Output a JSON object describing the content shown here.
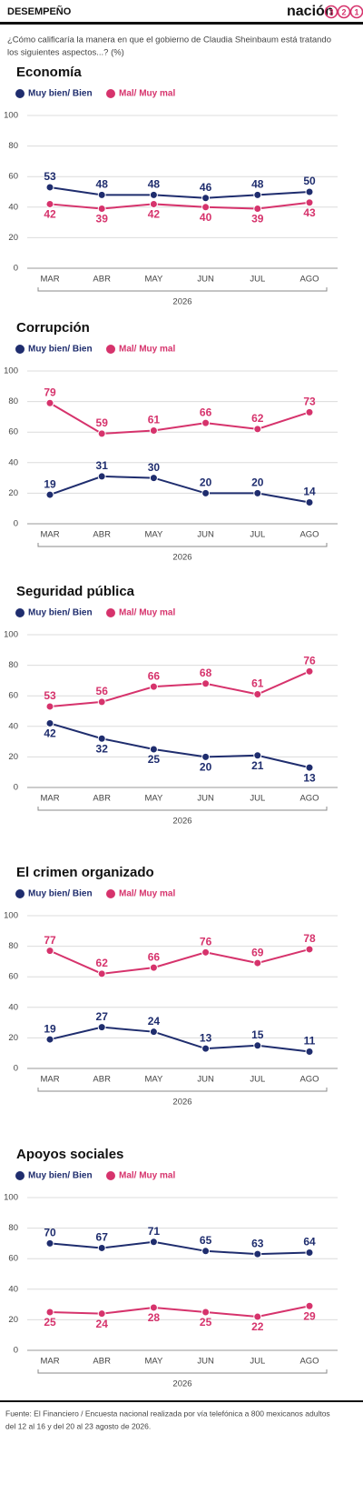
{
  "header": {
    "section": "DESEMPEÑO",
    "logo_word": "nación",
    "logo_digits": [
      "3",
      "2",
      "1"
    ]
  },
  "question": [
    "¿Cómo calificaría la manera en que el gobierno de Claudia Sheinbaum está tratando",
    "los siguientes aspectos...? (%)"
  ],
  "chart_data": [
    {
      "type": "line",
      "title": "Economía",
      "categories": [
        "MAR",
        "ABR",
        "MAY",
        "JUN",
        "JUL",
        "AGO"
      ],
      "x_label": "2026",
      "ylim": [
        0,
        100
      ],
      "yticks": [
        0,
        20,
        40,
        60,
        80,
        100
      ],
      "grid": true,
      "series": [
        {
          "name": "Muy bien/ Bien",
          "color": "#1f2d6e",
          "values": [
            53,
            48,
            48,
            46,
            48,
            50
          ]
        },
        {
          "name": "Mal/ Muy mal",
          "color": "#d6336c",
          "values": [
            42,
            39,
            42,
            40,
            39,
            43
          ]
        }
      ]
    },
    {
      "type": "line",
      "title": "Corrupción",
      "categories": [
        "MAR",
        "ABR",
        "MAY",
        "JUN",
        "JUL",
        "AGO"
      ],
      "x_label": "2026",
      "ylim": [
        0,
        100
      ],
      "yticks": [
        0,
        20,
        40,
        60,
        80,
        100
      ],
      "grid": true,
      "series": [
        {
          "name": "Muy bien/ Bien",
          "color": "#1f2d6e",
          "values": [
            19,
            31,
            30,
            20,
            20,
            14
          ]
        },
        {
          "name": "Mal/ Muy mal",
          "color": "#d6336c",
          "values": [
            79,
            59,
            61,
            66,
            62,
            73
          ]
        }
      ]
    },
    {
      "type": "line",
      "title": "Seguridad pública",
      "categories": [
        "MAR",
        "ABR",
        "MAY",
        "JUN",
        "JUL",
        "AGO"
      ],
      "x_label": "2026",
      "ylim": [
        0,
        100
      ],
      "yticks": [
        0,
        20,
        40,
        60,
        80,
        100
      ],
      "grid": true,
      "series": [
        {
          "name": "Muy bien/ Bien",
          "color": "#1f2d6e",
          "values": [
            42,
            32,
            25,
            20,
            21,
            13
          ]
        },
        {
          "name": "Mal/ Muy mal",
          "color": "#d6336c",
          "values": [
            53,
            56,
            66,
            68,
            61,
            76
          ]
        }
      ]
    },
    {
      "type": "line",
      "title": "El crimen organizado",
      "categories": [
        "MAR",
        "ABR",
        "MAY",
        "JUN",
        "JUL",
        "AGO"
      ],
      "x_label": "2026",
      "ylim": [
        0,
        100
      ],
      "yticks": [
        0,
        20,
        40,
        60,
        80,
        100
      ],
      "grid": true,
      "series": [
        {
          "name": "Muy bien/ Bien",
          "color": "#1f2d6e",
          "values": [
            19,
            27,
            24,
            13,
            15,
            11
          ]
        },
        {
          "name": "Mal/ Muy mal",
          "color": "#d6336c",
          "values": [
            77,
            62,
            66,
            76,
            69,
            78
          ]
        }
      ]
    },
    {
      "type": "line",
      "title": "Apoyos sociales",
      "categories": [
        "MAR",
        "ABR",
        "MAY",
        "JUN",
        "JUL",
        "AGO"
      ],
      "x_label": "2026",
      "ylim": [
        0,
        100
      ],
      "yticks": [
        0,
        20,
        40,
        60,
        80,
        100
      ],
      "grid": true,
      "series": [
        {
          "name": "Muy bien/ Bien",
          "color": "#1f2d6e",
          "values": [
            70,
            67,
            71,
            65,
            63,
            64
          ]
        },
        {
          "name": "Mal/ Muy mal",
          "color": "#d6336c",
          "values": [
            25,
            24,
            28,
            25,
            22,
            29
          ]
        }
      ]
    }
  ],
  "footer": [
    "Fuente: El Financiero / Encuesta nacional realizada por vía telefónica a 800 mexicanos adultos",
    "del 12 al 16  y del 20 al 23 agosto de 2026."
  ]
}
